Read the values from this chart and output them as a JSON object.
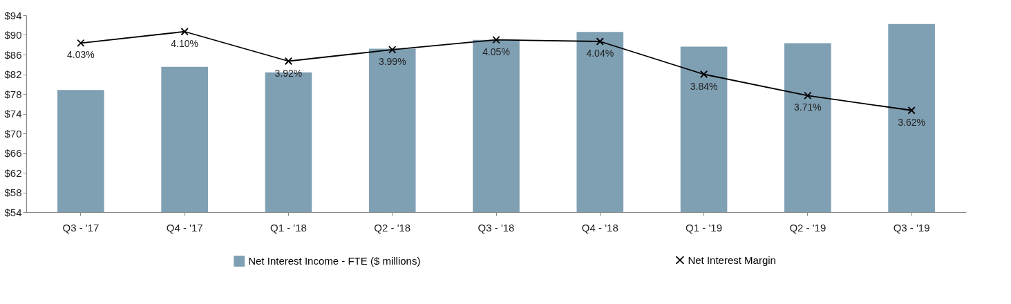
{
  "chart_data": {
    "type": "bar",
    "categories": [
      "Q3 - '17",
      "Q4 - '17",
      "Q1 - '18",
      "Q2 - '18",
      "Q3 - '18",
      "Q4 - '18",
      "Q1 - '19",
      "Q2 - '19",
      "Q3 - '19"
    ],
    "series": [
      {
        "name": "Net Interest Income - FTE ($ millions)",
        "color": "#7f9fb3",
        "values": [
          78.8,
          83.5,
          82.4,
          87.2,
          89.0,
          90.6,
          87.6,
          88.3,
          92.2
        ]
      },
      {
        "name": "Net Interest Margin",
        "type": "line",
        "axis": "y2",
        "color": "#000000",
        "marker": "cross",
        "data_labels": true,
        "value_labels": [
          "4.03%",
          "4.10%",
          "3.92%",
          "3.99%",
          "4.05%",
          "4.04%",
          "3.84%",
          "3.71%",
          "3.62%"
        ],
        "values": [
          4.03,
          4.1,
          3.92,
          3.99,
          4.05,
          4.04,
          3.84,
          3.71,
          3.62
        ]
      }
    ],
    "ylim": [
      54,
      94
    ],
    "yticks": [
      {
        "value": 54,
        "label": "$54"
      },
      {
        "value": 58,
        "label": "$58"
      },
      {
        "value": 62,
        "label": "$62"
      },
      {
        "value": 66,
        "label": "$66"
      },
      {
        "value": 70,
        "label": "$70"
      },
      {
        "value": 74,
        "label": "$74"
      },
      {
        "value": 78,
        "label": "$78"
      },
      {
        "value": 82,
        "label": "$82"
      },
      {
        "value": 86,
        "label": "$86"
      },
      {
        "value": 90,
        "label": "$90"
      },
      {
        "value": 94,
        "label": "$94"
      }
    ],
    "y2lim": [
      3.0,
      4.2
    ],
    "grid": false,
    "legend": "bottom"
  }
}
